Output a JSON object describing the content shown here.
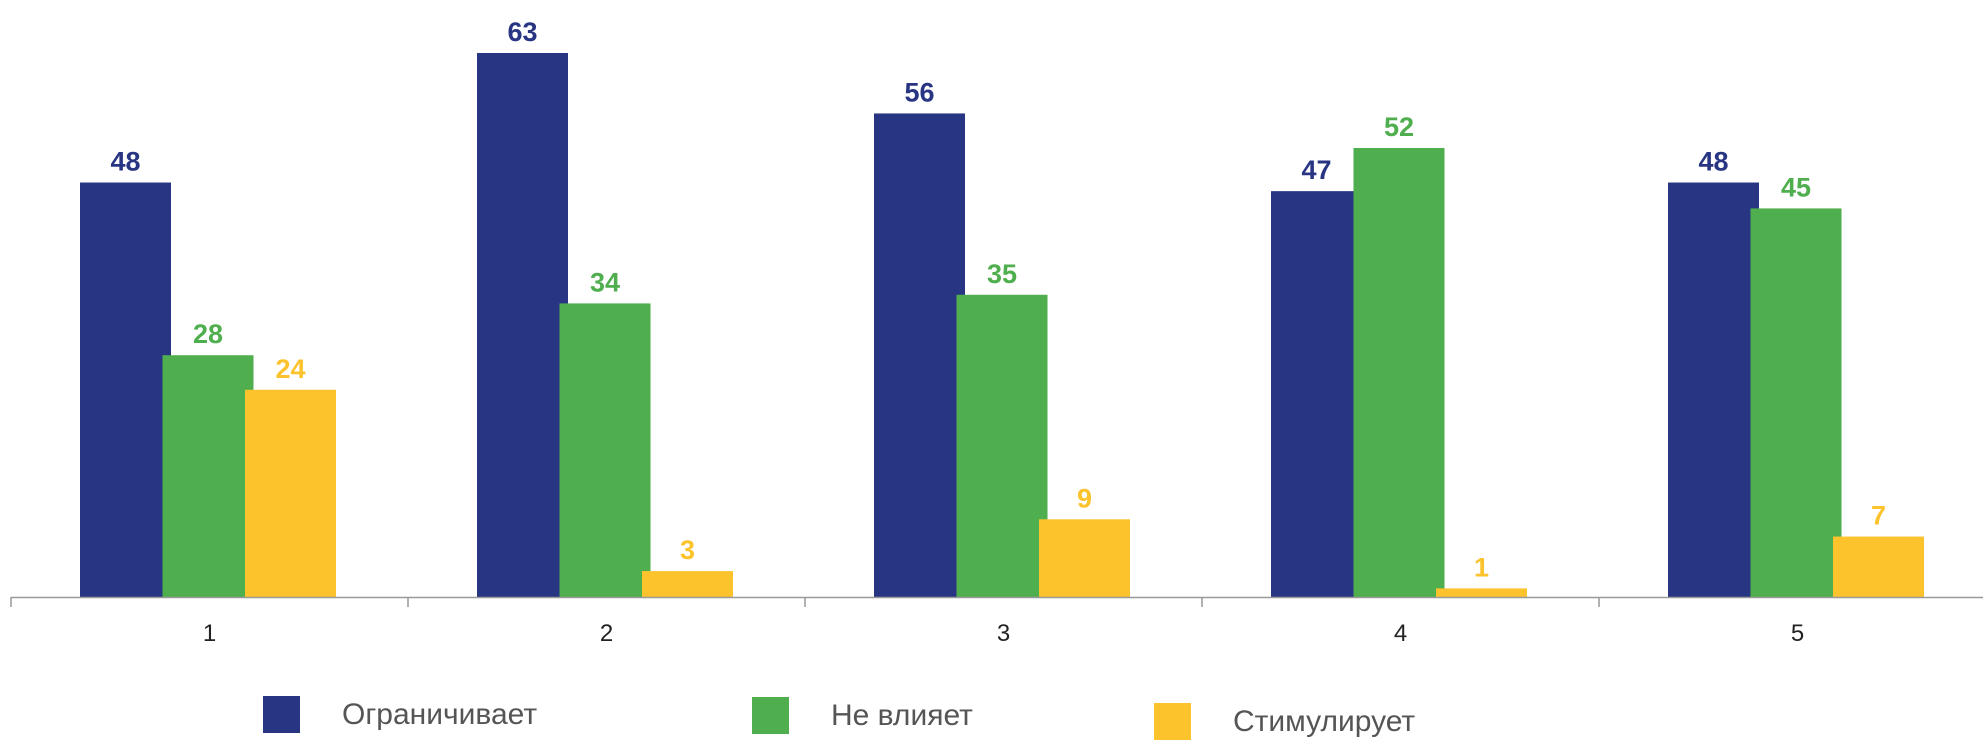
{
  "chart_data": {
    "type": "bar",
    "title": "",
    "xlabel": "",
    "ylabel": "",
    "categories": [
      "1",
      "2",
      "3",
      "4",
      "5"
    ],
    "series": [
      {
        "name": "Ограничивает",
        "color": "#283583",
        "values": [
          48,
          63,
          56,
          47,
          48
        ]
      },
      {
        "name": "Не влияет",
        "color": "#4FAE4D",
        "values": [
          28,
          34,
          35,
          52,
          45
        ]
      },
      {
        "name": "Стимулирует",
        "color": "#FCC32C",
        "values": [
          24,
          3,
          9,
          1,
          7
        ]
      }
    ],
    "ylim": [
      0,
      69
    ],
    "grid": false,
    "legend": "bottom",
    "data_labels": true
  }
}
